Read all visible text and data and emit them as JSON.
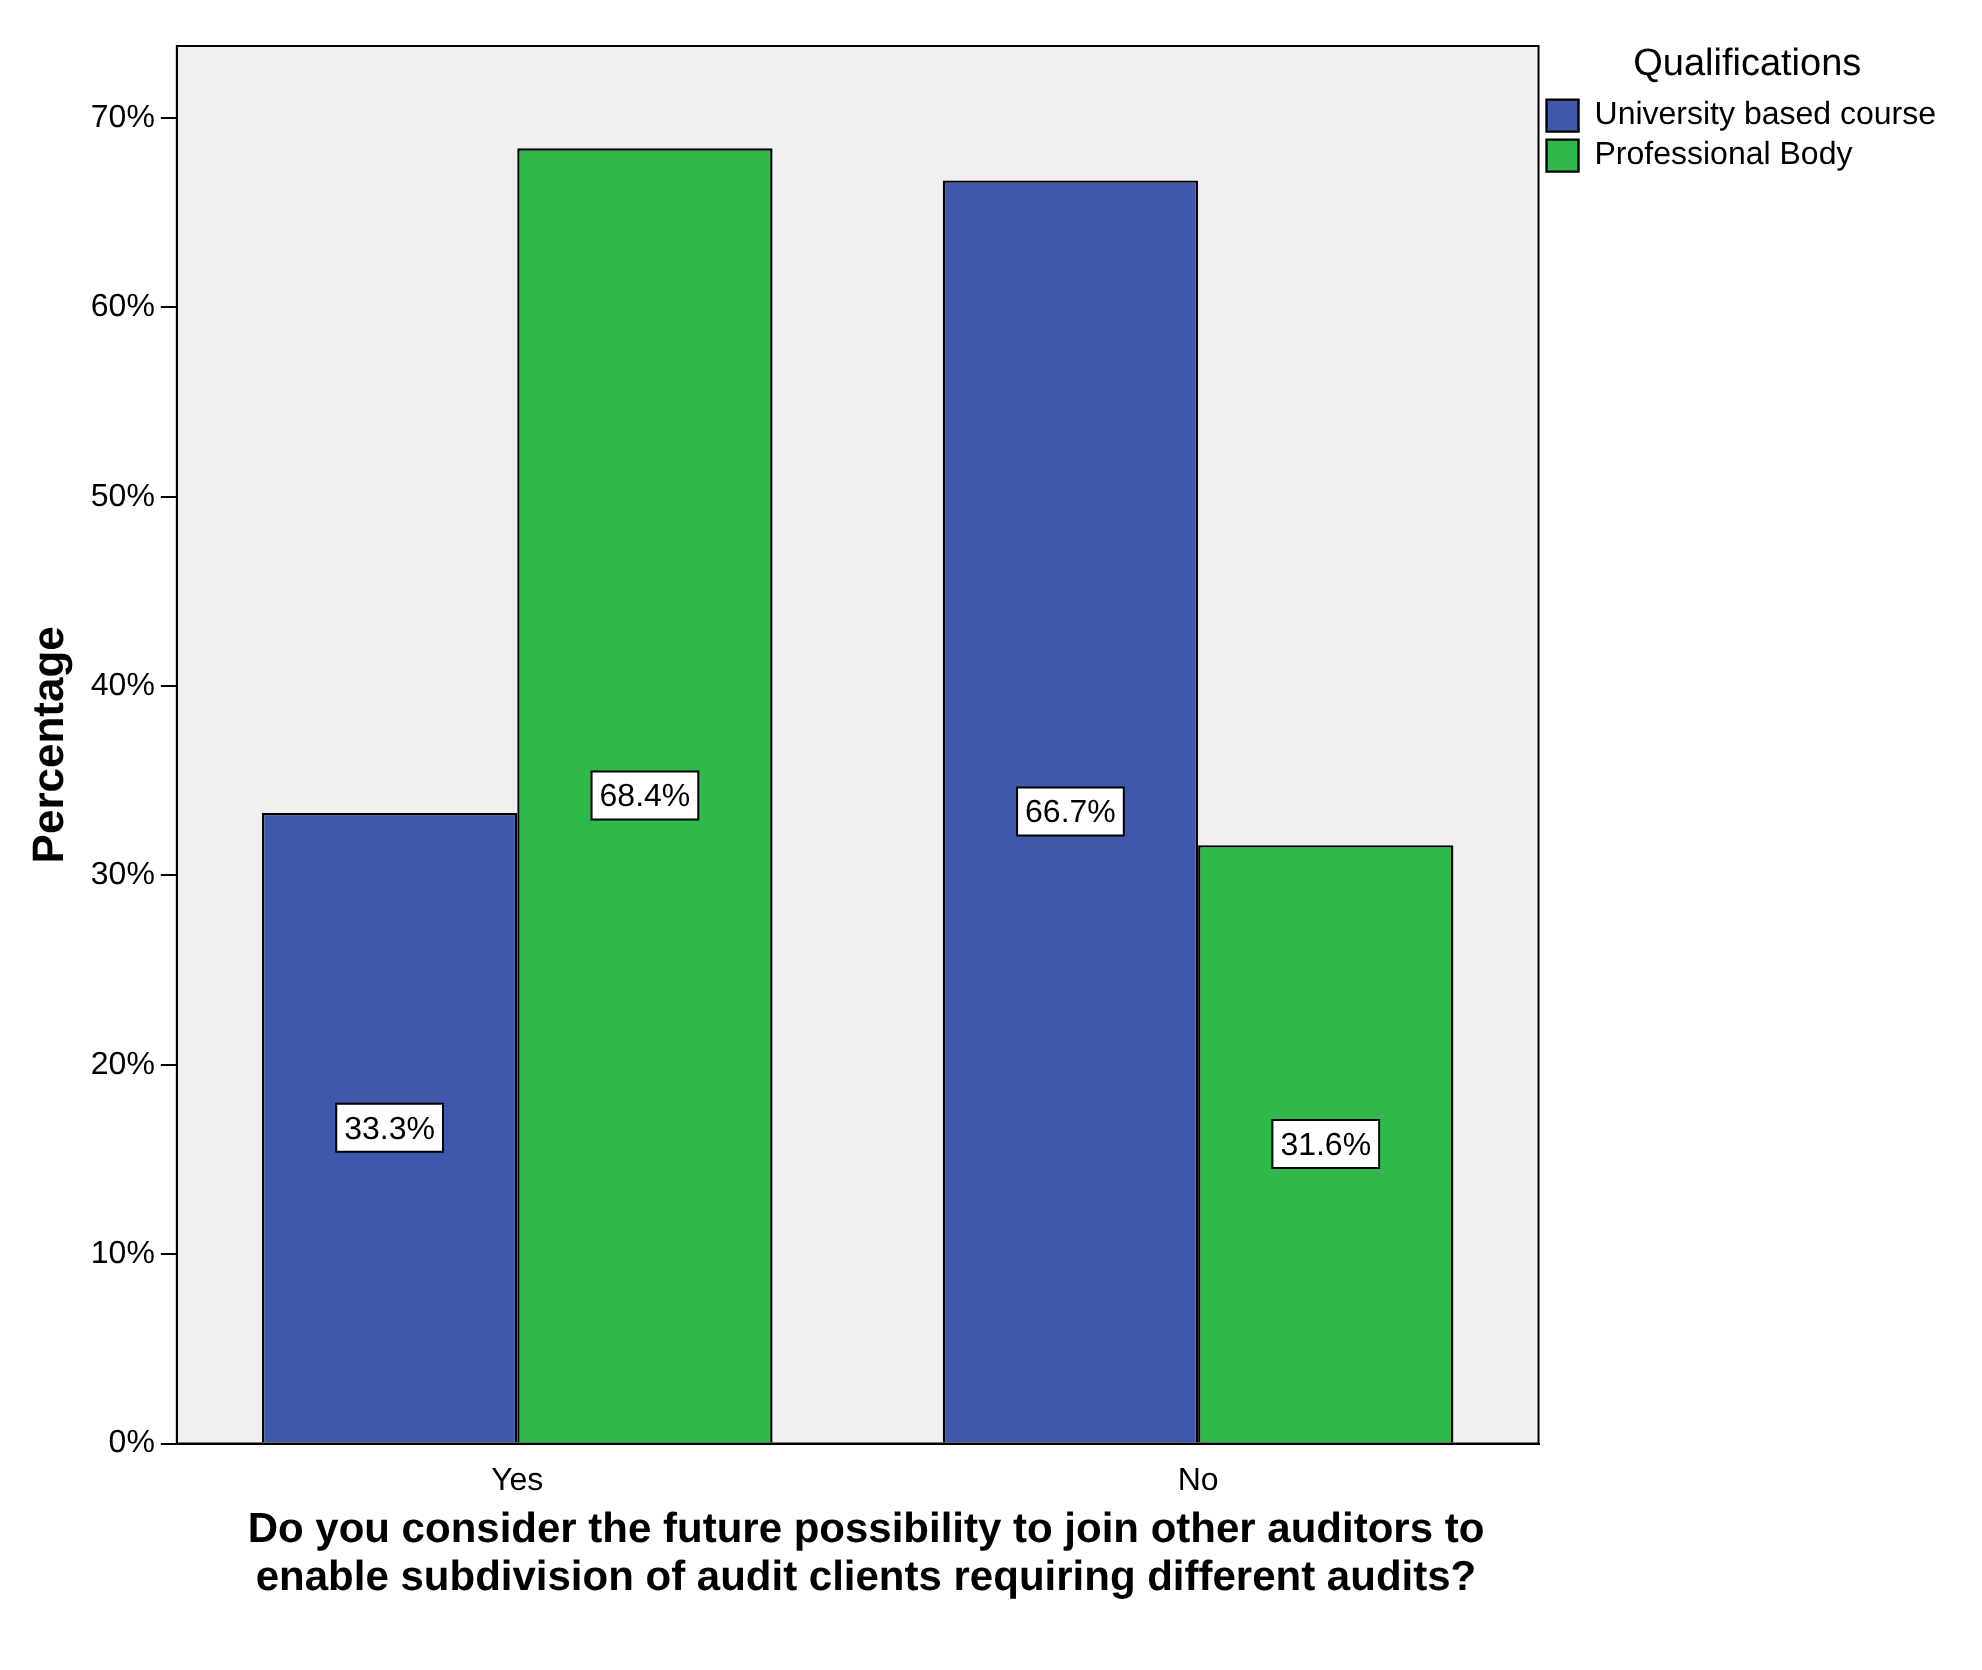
{
  "chart_data": {
    "type": "bar",
    "xlabel": "Do you consider the future possibility to join other auditors to enable subdivision of audit clients requiring different audits?",
    "ylabel": "Percentage",
    "legend_title": "Qualifications",
    "categories": [
      "Yes",
      "No"
    ],
    "series": [
      {
        "name": "University based course",
        "color": "#3e58ac",
        "values": [
          33.3,
          66.7
        ],
        "value_labels": [
          "33.3%",
          "66.7%"
        ]
      },
      {
        "name": "Professional Body",
        "color": "#2fb94a",
        "values": [
          68.4,
          31.6
        ],
        "value_labels": [
          "68.4%",
          "31.6%"
        ]
      }
    ],
    "ylim": [
      0,
      73.8
    ],
    "yticks": [
      {
        "value": 0,
        "label": "0%"
      },
      {
        "value": 10,
        "label": "10%"
      },
      {
        "value": 20,
        "label": "20%"
      },
      {
        "value": 30,
        "label": "30%"
      },
      {
        "value": 40,
        "label": "40%"
      },
      {
        "value": 50,
        "label": "50%"
      },
      {
        "value": 60,
        "label": "60%"
      },
      {
        "value": 70,
        "label": "70%"
      }
    ],
    "grid": false,
    "legend": "top right"
  }
}
